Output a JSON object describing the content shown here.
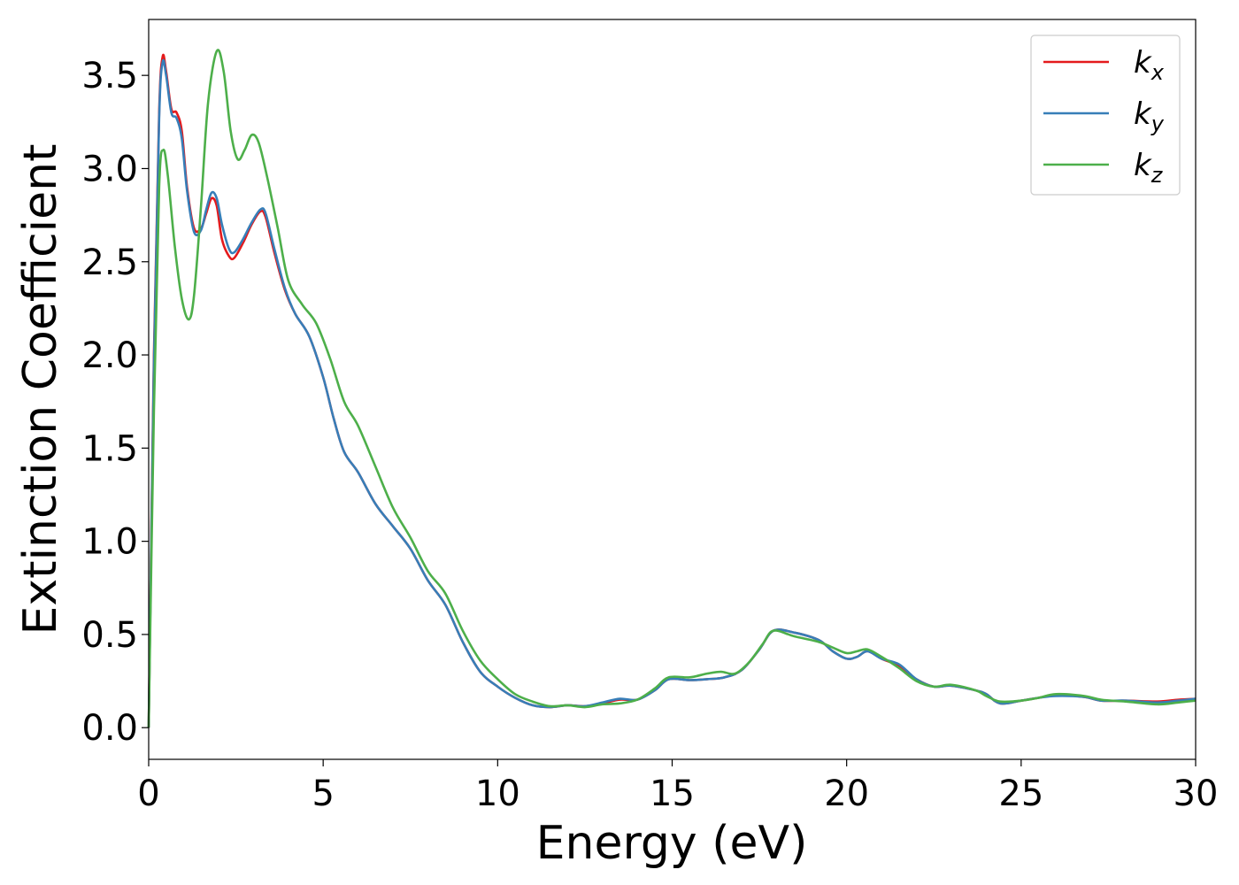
{
  "chart_data": {
    "type": "line",
    "title": "",
    "xlabel": "Energy (eV)",
    "ylabel": "Extinction Coefficient",
    "xlim": [
      0,
      30
    ],
    "ylim": [
      -0.17,
      3.8
    ],
    "x_ticks": [
      0,
      5,
      10,
      15,
      20,
      25,
      30
    ],
    "x_tick_labels": [
      "0",
      "5",
      "10",
      "15",
      "20",
      "25",
      "30"
    ],
    "y_ticks": [
      0.0,
      0.5,
      1.0,
      1.5,
      2.0,
      2.5,
      3.0,
      3.5
    ],
    "y_tick_labels": [
      "0.0",
      "0.5",
      "1.0",
      "1.5",
      "2.0",
      "2.5",
      "3.0",
      "3.5"
    ],
    "grid": false,
    "legend_position": "top-right",
    "series": [
      {
        "name": "k",
        "subscript": "x",
        "color": "#e41a1c",
        "points": [
          [
            0,
            0
          ],
          [
            0.15,
            2.0
          ],
          [
            0.3,
            3.3
          ],
          [
            0.4,
            3.6
          ],
          [
            0.5,
            3.52
          ],
          [
            0.65,
            3.32
          ],
          [
            0.8,
            3.3
          ],
          [
            0.95,
            3.2
          ],
          [
            1.1,
            2.9
          ],
          [
            1.3,
            2.68
          ],
          [
            1.5,
            2.68
          ],
          [
            1.65,
            2.76
          ],
          [
            1.8,
            2.84
          ],
          [
            1.95,
            2.8
          ],
          [
            2.1,
            2.62
          ],
          [
            2.3,
            2.53
          ],
          [
            2.45,
            2.52
          ],
          [
            2.7,
            2.6
          ],
          [
            2.95,
            2.7
          ],
          [
            3.2,
            2.77
          ],
          [
            3.35,
            2.74
          ],
          [
            3.6,
            2.55
          ],
          [
            3.9,
            2.35
          ],
          [
            4.2,
            2.22
          ],
          [
            4.6,
            2.1
          ],
          [
            5.0,
            1.88
          ],
          [
            5.3,
            1.66
          ],
          [
            5.6,
            1.48
          ],
          [
            6.0,
            1.37
          ],
          [
            6.5,
            1.2
          ],
          [
            7.0,
            1.08
          ],
          [
            7.5,
            0.96
          ],
          [
            8.0,
            0.79
          ],
          [
            8.5,
            0.66
          ],
          [
            9.0,
            0.46
          ],
          [
            9.5,
            0.3
          ],
          [
            10.0,
            0.22
          ],
          [
            10.5,
            0.16
          ],
          [
            11.0,
            0.12
          ],
          [
            11.5,
            0.11
          ],
          [
            12.0,
            0.12
          ],
          [
            12.5,
            0.115
          ],
          [
            13.0,
            0.13
          ],
          [
            13.5,
            0.15
          ],
          [
            14.0,
            0.15
          ],
          [
            14.5,
            0.2
          ],
          [
            14.9,
            0.26
          ],
          [
            15.5,
            0.255
          ],
          [
            16.0,
            0.26
          ],
          [
            16.5,
            0.27
          ],
          [
            17.0,
            0.31
          ],
          [
            17.5,
            0.42
          ],
          [
            17.9,
            0.52
          ],
          [
            18.5,
            0.51
          ],
          [
            19.2,
            0.47
          ],
          [
            19.6,
            0.41
          ],
          [
            20.0,
            0.37
          ],
          [
            20.3,
            0.38
          ],
          [
            20.6,
            0.41
          ],
          [
            21.0,
            0.37
          ],
          [
            21.5,
            0.33
          ],
          [
            22.0,
            0.26
          ],
          [
            22.5,
            0.22
          ],
          [
            23.0,
            0.225
          ],
          [
            23.7,
            0.2
          ],
          [
            24.0,
            0.18
          ],
          [
            24.4,
            0.13
          ],
          [
            25.0,
            0.145
          ],
          [
            25.5,
            0.16
          ],
          [
            26.0,
            0.175
          ],
          [
            26.8,
            0.165
          ],
          [
            27.3,
            0.145
          ],
          [
            28.0,
            0.145
          ],
          [
            28.9,
            0.14
          ],
          [
            29.5,
            0.15
          ],
          [
            30.0,
            0.155
          ]
        ]
      },
      {
        "name": "k",
        "subscript": "y",
        "color": "#377eb8",
        "points": [
          [
            0,
            0
          ],
          [
            0.15,
            1.95
          ],
          [
            0.3,
            3.27
          ],
          [
            0.4,
            3.57
          ],
          [
            0.5,
            3.5
          ],
          [
            0.65,
            3.3
          ],
          [
            0.8,
            3.27
          ],
          [
            0.95,
            3.16
          ],
          [
            1.1,
            2.88
          ],
          [
            1.3,
            2.66
          ],
          [
            1.5,
            2.67
          ],
          [
            1.65,
            2.78
          ],
          [
            1.8,
            2.87
          ],
          [
            1.95,
            2.84
          ],
          [
            2.1,
            2.7
          ],
          [
            2.3,
            2.57
          ],
          [
            2.45,
            2.55
          ],
          [
            2.7,
            2.62
          ],
          [
            2.95,
            2.71
          ],
          [
            3.2,
            2.78
          ],
          [
            3.35,
            2.76
          ],
          [
            3.6,
            2.57
          ],
          [
            3.9,
            2.36
          ],
          [
            4.2,
            2.22
          ],
          [
            4.6,
            2.1
          ],
          [
            5.0,
            1.88
          ],
          [
            5.3,
            1.66
          ],
          [
            5.6,
            1.48
          ],
          [
            6.0,
            1.37
          ],
          [
            6.5,
            1.2
          ],
          [
            7.0,
            1.08
          ],
          [
            7.5,
            0.96
          ],
          [
            8.0,
            0.79
          ],
          [
            8.5,
            0.66
          ],
          [
            9.0,
            0.46
          ],
          [
            9.5,
            0.3
          ],
          [
            10.0,
            0.22
          ],
          [
            10.5,
            0.16
          ],
          [
            11.0,
            0.12
          ],
          [
            11.5,
            0.11
          ],
          [
            12.0,
            0.12
          ],
          [
            12.5,
            0.115
          ],
          [
            13.0,
            0.135
          ],
          [
            13.5,
            0.155
          ],
          [
            14.0,
            0.15
          ],
          [
            14.5,
            0.2
          ],
          [
            14.9,
            0.26
          ],
          [
            15.5,
            0.255
          ],
          [
            16.0,
            0.26
          ],
          [
            16.5,
            0.27
          ],
          [
            17.0,
            0.31
          ],
          [
            17.5,
            0.42
          ],
          [
            17.9,
            0.52
          ],
          [
            18.5,
            0.51
          ],
          [
            19.2,
            0.47
          ],
          [
            19.6,
            0.41
          ],
          [
            20.0,
            0.37
          ],
          [
            20.3,
            0.38
          ],
          [
            20.6,
            0.41
          ],
          [
            21.0,
            0.37
          ],
          [
            21.5,
            0.34
          ],
          [
            22.0,
            0.26
          ],
          [
            22.5,
            0.22
          ],
          [
            23.0,
            0.225
          ],
          [
            23.7,
            0.2
          ],
          [
            24.0,
            0.18
          ],
          [
            24.4,
            0.13
          ],
          [
            25.0,
            0.145
          ],
          [
            25.5,
            0.16
          ],
          [
            26.0,
            0.17
          ],
          [
            26.8,
            0.165
          ],
          [
            27.3,
            0.145
          ],
          [
            28.0,
            0.145
          ],
          [
            28.9,
            0.135
          ],
          [
            29.5,
            0.145
          ],
          [
            30.0,
            0.155
          ]
        ]
      },
      {
        "name": "k",
        "subscript": "z",
        "color": "#4daf4a",
        "points": [
          [
            0,
            0
          ],
          [
            0.15,
            1.7
          ],
          [
            0.3,
            2.9
          ],
          [
            0.42,
            3.1
          ],
          [
            0.55,
            2.96
          ],
          [
            0.75,
            2.58
          ],
          [
            0.95,
            2.3
          ],
          [
            1.15,
            2.19
          ],
          [
            1.3,
            2.32
          ],
          [
            1.5,
            2.8
          ],
          [
            1.7,
            3.35
          ],
          [
            1.95,
            3.63
          ],
          [
            2.15,
            3.52
          ],
          [
            2.35,
            3.2
          ],
          [
            2.55,
            3.05
          ],
          [
            2.75,
            3.1
          ],
          [
            2.95,
            3.18
          ],
          [
            3.15,
            3.14
          ],
          [
            3.4,
            2.95
          ],
          [
            3.7,
            2.68
          ],
          [
            4.0,
            2.4
          ],
          [
            4.4,
            2.27
          ],
          [
            4.8,
            2.17
          ],
          [
            5.2,
            1.98
          ],
          [
            5.6,
            1.75
          ],
          [
            6.0,
            1.62
          ],
          [
            6.5,
            1.4
          ],
          [
            7.0,
            1.18
          ],
          [
            7.5,
            1.02
          ],
          [
            8.0,
            0.84
          ],
          [
            8.5,
            0.72
          ],
          [
            9.0,
            0.52
          ],
          [
            9.5,
            0.36
          ],
          [
            10.0,
            0.26
          ],
          [
            10.5,
            0.18
          ],
          [
            11.0,
            0.14
          ],
          [
            11.5,
            0.115
          ],
          [
            12.0,
            0.12
          ],
          [
            12.5,
            0.11
          ],
          [
            13.0,
            0.125
          ],
          [
            13.5,
            0.13
          ],
          [
            14.0,
            0.15
          ],
          [
            14.5,
            0.21
          ],
          [
            14.9,
            0.27
          ],
          [
            15.5,
            0.27
          ],
          [
            16.0,
            0.29
          ],
          [
            16.4,
            0.3
          ],
          [
            16.8,
            0.29
          ],
          [
            17.2,
            0.35
          ],
          [
            17.6,
            0.45
          ],
          [
            17.9,
            0.52
          ],
          [
            18.5,
            0.49
          ],
          [
            19.2,
            0.46
          ],
          [
            19.6,
            0.43
          ],
          [
            20.0,
            0.4
          ],
          [
            20.3,
            0.41
          ],
          [
            20.6,
            0.42
          ],
          [
            21.0,
            0.38
          ],
          [
            21.5,
            0.32
          ],
          [
            22.0,
            0.25
          ],
          [
            22.5,
            0.22
          ],
          [
            23.0,
            0.23
          ],
          [
            23.7,
            0.2
          ],
          [
            24.0,
            0.17
          ],
          [
            24.4,
            0.14
          ],
          [
            25.0,
            0.145
          ],
          [
            25.5,
            0.16
          ],
          [
            26.0,
            0.18
          ],
          [
            26.8,
            0.17
          ],
          [
            27.3,
            0.15
          ],
          [
            28.0,
            0.14
          ],
          [
            28.9,
            0.125
          ],
          [
            29.5,
            0.135
          ],
          [
            30.0,
            0.145
          ]
        ]
      }
    ]
  }
}
